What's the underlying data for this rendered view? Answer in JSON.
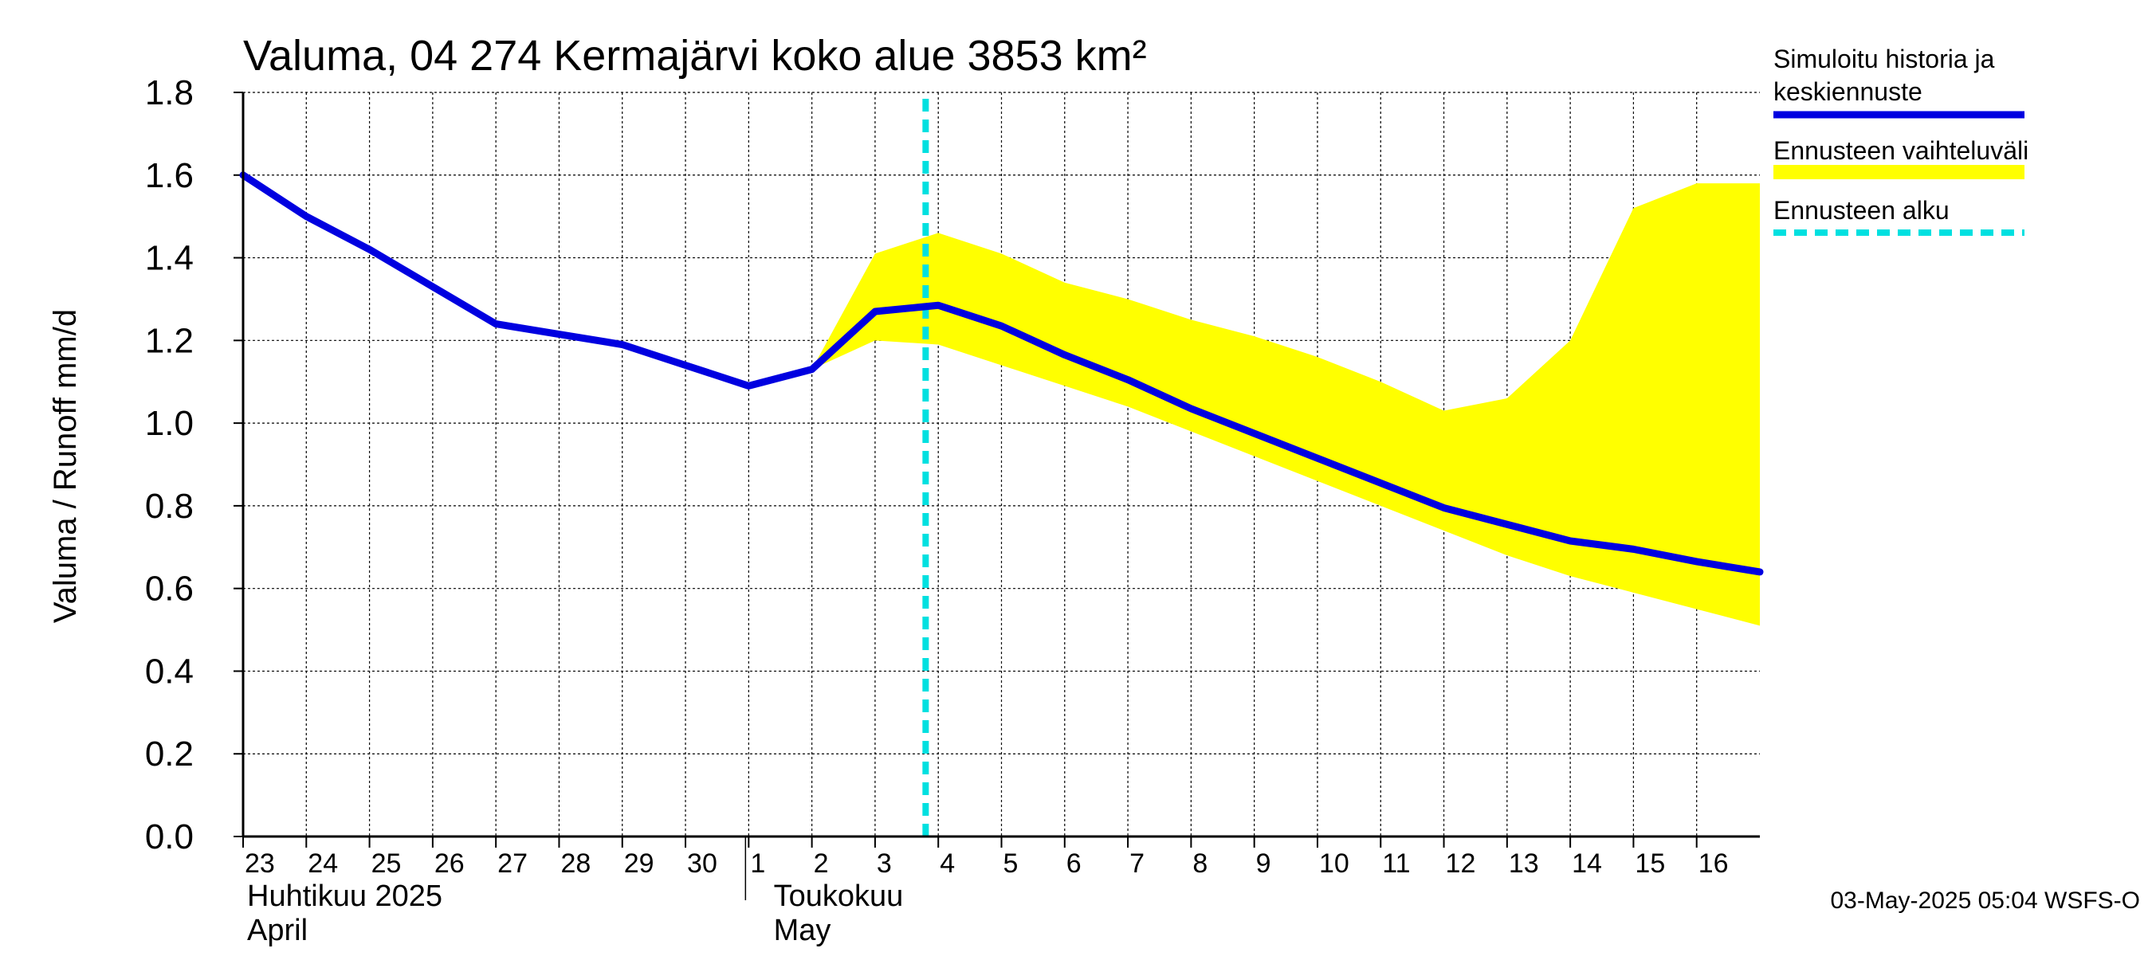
{
  "chart_data": {
    "type": "line",
    "title": "Valuma, 04 274 Kermajärvi koko alue 3853 km²",
    "ylabel": "Valuma / Runoff    mm/d",
    "ylim": [
      0.0,
      1.8
    ],
    "yticks": [
      "0.0",
      "0.2",
      "0.4",
      "0.6",
      "0.8",
      "1.0",
      "1.2",
      "1.4",
      "1.6",
      "1.8"
    ],
    "grid": true,
    "legend_position": "right",
    "x_tick_labels": [
      "23",
      "24",
      "25",
      "26",
      "27",
      "28",
      "29",
      "30",
      "1",
      "2",
      "3",
      "4",
      "5",
      "6",
      "7",
      "8",
      "9",
      "10",
      "11",
      "12",
      "13",
      "14",
      "15",
      "16"
    ],
    "month_labels": [
      {
        "fi": "Huhtikuu  2025",
        "en": "April"
      },
      {
        "fi": "Toukokuu",
        "en": "May"
      }
    ],
    "x_range_days": [
      0,
      24
    ],
    "forecast_start_day": 10.8,
    "series": [
      {
        "name": "Simuloitu historia ja keskiennuste",
        "color": "#0000e0",
        "x": [
          0,
          1,
          2,
          3,
          4,
          5,
          6,
          7,
          8,
          9,
          10,
          11,
          12,
          13,
          14,
          15,
          16,
          17,
          18,
          19,
          20,
          21,
          22,
          23,
          24
        ],
        "values": [
          1.6,
          1.5,
          1.42,
          1.33,
          1.24,
          1.215,
          1.19,
          1.14,
          1.09,
          1.13,
          1.27,
          1.285,
          1.235,
          1.165,
          1.105,
          1.035,
          0.975,
          0.915,
          0.855,
          0.795,
          0.755,
          0.715,
          0.695,
          0.665,
          0.64
        ]
      }
    ],
    "band": {
      "name": "Ennusteen vaihteluväli",
      "color": "#ffff00",
      "x": [
        9,
        10,
        11,
        12,
        13,
        14,
        15,
        16,
        17,
        18,
        19,
        20,
        21,
        22,
        23,
        24
      ],
      "upper": [
        1.13,
        1.41,
        1.46,
        1.41,
        1.34,
        1.3,
        1.25,
        1.21,
        1.16,
        1.1,
        1.03,
        1.06,
        1.2,
        1.52,
        1.58,
        1.58
      ],
      "lower": [
        1.13,
        1.2,
        1.19,
        1.14,
        1.09,
        1.04,
        0.98,
        0.92,
        0.86,
        0.8,
        0.74,
        0.68,
        0.63,
        0.59,
        0.55,
        0.51
      ]
    },
    "forecast_line": {
      "name": "Ennusteen alku",
      "color": "#00e0e0"
    },
    "legend_entries": [
      {
        "line1": "Simuloitu historia ja",
        "line2": "keskiennuste",
        "color": "#0000e0",
        "style": "solid"
      },
      {
        "line1": "Ennusteen vaihteluväli",
        "line2": "",
        "color": "#ffff00",
        "style": "band"
      },
      {
        "line1": "Ennusteen alku",
        "line2": "",
        "color": "#00e0e0",
        "style": "dashed"
      }
    ]
  },
  "footer": "03-May-2025 05:04 WSFS-O"
}
